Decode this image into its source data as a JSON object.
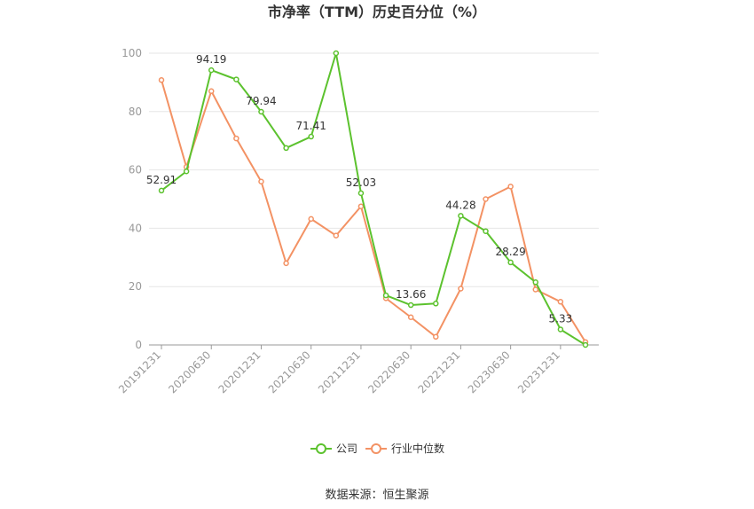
{
  "chart_data": {
    "type": "line",
    "title": "市净率（TTM）历史百分位（%）",
    "ylim": [
      0,
      100
    ],
    "yticks": [
      0,
      20,
      40,
      60,
      80,
      100
    ],
    "x": [
      "20191231",
      "20200331",
      "20200630",
      "20200930",
      "20201231",
      "20210331",
      "20210630",
      "20210930",
      "20211231",
      "20220331",
      "20220630",
      "20220930",
      "20221231",
      "20230331",
      "20230630",
      "20230930",
      "20231231",
      "20240331"
    ],
    "x_tick_labels": [
      "20191231",
      "20200630",
      "20201231",
      "20210630",
      "20211231",
      "20220630",
      "20221231",
      "20230630",
      "20231231"
    ],
    "series": [
      {
        "name": "公司",
        "color": "#5cc22e",
        "values": [
          52.91,
          59.5,
          94.19,
          91.0,
          79.94,
          67.5,
          71.41,
          100.0,
          52.03,
          17.0,
          13.66,
          14.2,
          44.28,
          39.0,
          28.29,
          21.5,
          5.33,
          0.0
        ],
        "labels": {
          "0": "52.91",
          "2": "94.19",
          "4": "79.94",
          "6": "71.41",
          "8": "52.03",
          "10": "13.66",
          "12": "44.28",
          "14": "28.29",
          "16": "5.33"
        }
      },
      {
        "name": "行业中位数",
        "color": "#f39264",
        "values": [
          90.8,
          61.0,
          87.0,
          70.8,
          56.0,
          28.0,
          43.2,
          37.5,
          47.5,
          16.0,
          9.5,
          2.8,
          19.3,
          50.0,
          54.3,
          19.0,
          14.8,
          1.0
        ]
      }
    ],
    "legend_position": "bottom-center",
    "grid": true
  },
  "source": "数据来源：恒生聚源"
}
